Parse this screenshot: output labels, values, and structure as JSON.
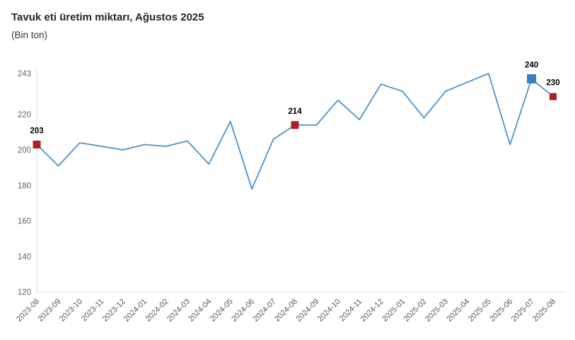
{
  "chart": {
    "title": "Tavuk eti üretim miktarı, Ağustos 2025",
    "subtitle": "(Bin ton)"
  },
  "chart_data": {
    "type": "line",
    "title": "Tavuk eti üretim miktarı, Ağustos 2025",
    "subtitle": "(Bin ton)",
    "ylabel": "Bin ton",
    "xlabel": "",
    "categories": [
      "2023-08",
      "2023-09",
      "2023-10",
      "2023-11",
      "2023-12",
      "2024-01",
      "2024-02",
      "2024-03",
      "2024-04",
      "2024-05",
      "2024-06",
      "2024-07",
      "2024-08",
      "2024-09",
      "2024-10",
      "2024-11",
      "2024-12",
      "2025-01",
      "2025-02",
      "2025-03",
      "2025-04",
      "2025-05",
      "2025-06",
      "2025-07",
      "2025-08"
    ],
    "values": [
      203,
      191,
      204,
      202,
      200,
      203,
      202,
      205,
      192,
      216,
      178,
      206,
      214,
      214,
      228,
      217,
      237,
      233,
      218,
      233,
      238,
      243,
      203,
      240,
      230
    ],
    "ylim": [
      120,
      243
    ],
    "yticks": [
      120,
      140,
      160,
      180,
      200,
      220,
      243
    ],
    "grid": false,
    "legend": false,
    "marked_points": [
      {
        "category": "2023-08",
        "index": 0,
        "value": 203,
        "label": "203",
        "color": "#b01f24",
        "size": 11
      },
      {
        "category": "2024-08",
        "index": 12,
        "value": 214,
        "label": "214",
        "color": "#b01f24",
        "size": 11
      },
      {
        "category": "2025-07",
        "index": 23,
        "value": 240,
        "label": "240",
        "color": "#3c7ebf",
        "size": 13
      },
      {
        "category": "2025-08",
        "index": 24,
        "value": 230,
        "label": "230",
        "color": "#b01f24",
        "size": 10
      }
    ],
    "colors": {
      "line": "#4e91cd",
      "marker_red": "#b01f24",
      "marker_blue": "#3c7ebf",
      "axis_line": "#e2e2e2",
      "y_tick_label": "#666666",
      "x_tick_label": "#595959",
      "data_label": "#000000",
      "title": "#262626",
      "subtitle": "#333333"
    }
  }
}
